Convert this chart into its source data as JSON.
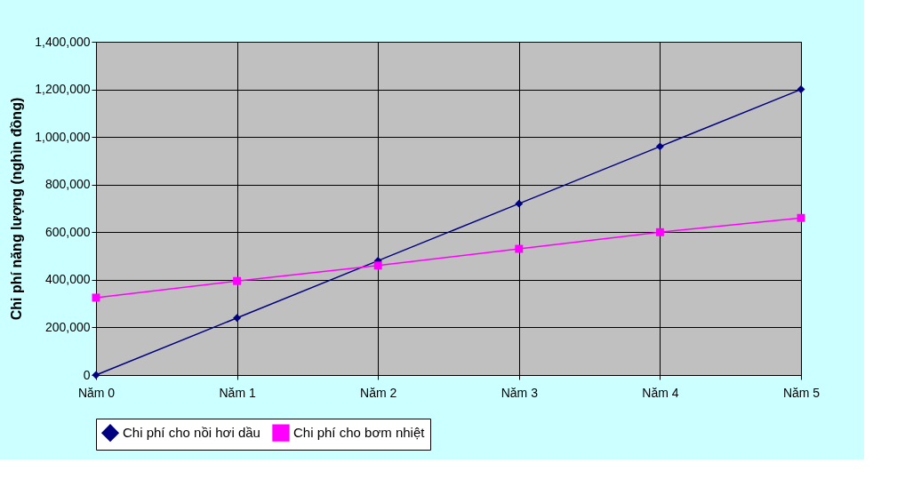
{
  "chart_data": {
    "type": "line",
    "ylabel": "Chi phí năng lượng (nghìn đồng)",
    "categories": [
      "Năm 0",
      "Năm 1",
      "Năm 2",
      "Năm 3",
      "Năm 4",
      "Năm 5"
    ],
    "series": [
      {
        "name": "Chi phí cho nồi hơi dầu",
        "color": "#000080",
        "marker": "diamond",
        "values": [
          0,
          240000,
          480000,
          720000,
          960000,
          1200000
        ]
      },
      {
        "name": "Chi phí cho bơm nhiệt",
        "color": "#ff00ff",
        "marker": "square",
        "values": [
          325000,
          395000,
          460000,
          530000,
          600000,
          660000
        ]
      }
    ],
    "ylim": [
      0,
      1400000
    ],
    "yticks": [
      0,
      {
        "value": 200000,
        "label": "200,000"
      },
      {
        "value": 400000,
        "label": "400,000"
      },
      {
        "value": 600000,
        "label": "600,000"
      },
      {
        "value": 800000,
        "label": "800,000"
      },
      {
        "value": 1000000,
        "label": "1,000,000"
      },
      {
        "value": 1200000,
        "label": "1,200,000"
      },
      {
        "value": 1400000,
        "label": "1,400,000"
      }
    ],
    "grid": true,
    "legend": "bottom",
    "line_style": "solid"
  }
}
